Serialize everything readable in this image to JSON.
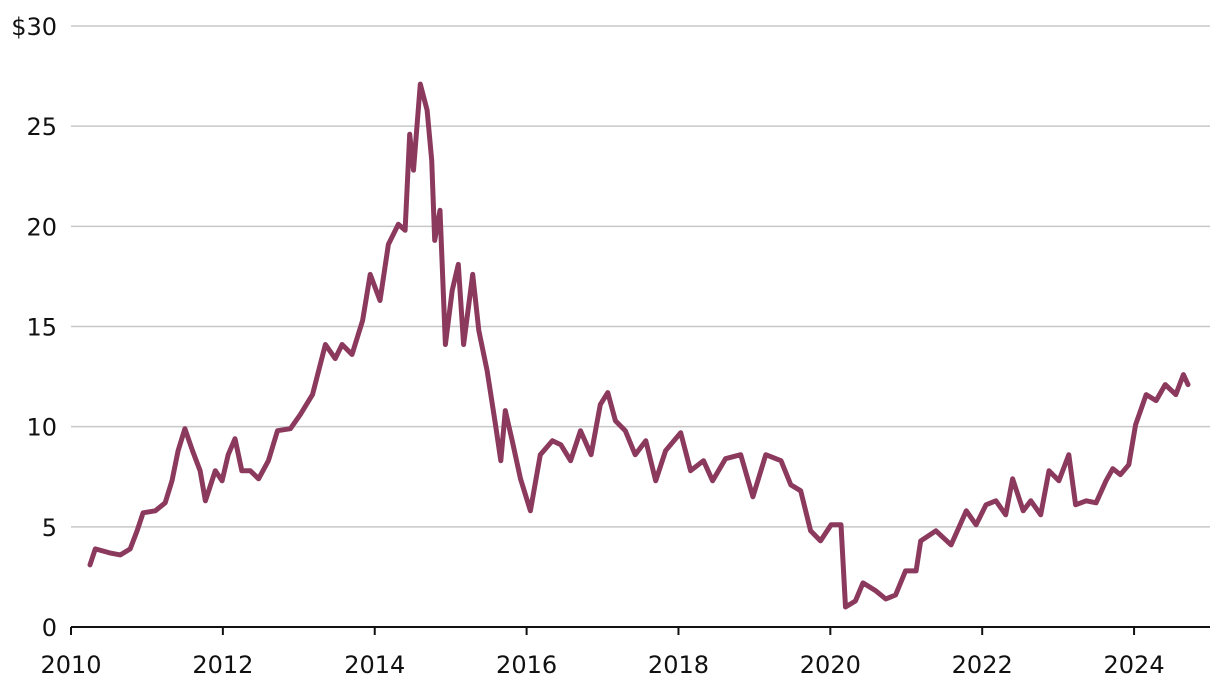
{
  "chart_data": {
    "type": "line",
    "color": "#8b3a5e",
    "grid": true,
    "xlim": [
      2010,
      2025
    ],
    "xticks": [
      2010,
      2012,
      2014,
      2016,
      2018,
      2020,
      2022,
      2024
    ],
    "ylim": [
      0,
      30
    ],
    "yticks": [
      0,
      5,
      10,
      15,
      20,
      25,
      {
        "value": 30,
        "label": "$30"
      }
    ],
    "x": [
      2010.25,
      2010.32,
      2010.51,
      2010.65,
      2010.78,
      2010.87,
      2010.95,
      2011.11,
      2011.24,
      2011.33,
      2011.41,
      2011.5,
      2011.6,
      2011.7,
      2011.77,
      2011.9,
      2011.99,
      2012.07,
      2012.16,
      2012.25,
      2012.36,
      2012.47,
      2012.6,
      2012.72,
      2012.89,
      2013.02,
      2013.18,
      2013.35,
      2013.48,
      2013.57,
      2013.7,
      2013.84,
      2013.94,
      2014.07,
      2014.18,
      2014.31,
      2014.4,
      2014.46,
      2014.51,
      2014.6,
      2014.69,
      2014.75,
      2014.79,
      2014.86,
      2014.93,
      2015.02,
      2015.1,
      2015.17,
      2015.29,
      2015.37,
      2015.48,
      2015.59,
      2015.66,
      2015.72,
      2015.81,
      2015.92,
      2016.05,
      2016.18,
      2016.34,
      2016.45,
      2016.58,
      2016.71,
      2016.85,
      2016.97,
      2017.07,
      2017.17,
      2017.3,
      2017.43,
      2017.57,
      2017.7,
      2017.83,
      2018.03,
      2018.16,
      2018.33,
      2018.45,
      2018.62,
      2018.82,
      2018.98,
      2019.15,
      2019.35,
      2019.48,
      2019.61,
      2019.74,
      2019.87,
      2020.01,
      2020.14,
      2020.2,
      2020.33,
      2020.43,
      2020.6,
      2020.73,
      2020.86,
      2020.99,
      2021.13,
      2021.19,
      2021.39,
      2021.59,
      2021.79,
      2021.92,
      2022.05,
      2022.18,
      2022.31,
      2022.4,
      2022.54,
      2022.64,
      2022.77,
      2022.88,
      2023.01,
      2023.14,
      2023.23,
      2023.37,
      2023.5,
      2023.63,
      2023.72,
      2023.82,
      2023.93,
      2024.02,
      2024.16,
      2024.29,
      2024.41,
      2024.55,
      2024.65,
      2024.71
    ],
    "values": [
      3.1,
      3.9,
      3.7,
      3.6,
      3.9,
      4.8,
      5.7,
      5.8,
      6.2,
      7.3,
      8.8,
      9.9,
      8.8,
      7.8,
      6.3,
      7.8,
      7.3,
      8.6,
      9.4,
      7.8,
      7.8,
      7.4,
      8.3,
      9.8,
      9.9,
      10.6,
      11.6,
      14.1,
      13.4,
      14.1,
      13.6,
      15.3,
      17.6,
      16.3,
      19.1,
      20.1,
      19.8,
      24.6,
      22.8,
      27.1,
      25.8,
      23.3,
      19.3,
      20.8,
      14.1,
      16.8,
      18.1,
      14.1,
      17.6,
      14.8,
      12.8,
      10.1,
      8.3,
      10.8,
      9.3,
      7.4,
      5.8,
      8.6,
      9.3,
      9.1,
      8.3,
      9.8,
      8.6,
      11.1,
      11.7,
      10.3,
      9.8,
      8.6,
      9.3,
      7.3,
      8.8,
      9.7,
      7.8,
      8.3,
      7.3,
      8.4,
      8.6,
      6.5,
      8.6,
      8.3,
      7.1,
      6.8,
      4.8,
      4.3,
      5.1,
      5.1,
      1.0,
      1.3,
      2.2,
      1.8,
      1.4,
      1.6,
      2.8,
      2.8,
      4.3,
      4.8,
      4.1,
      5.8,
      5.1,
      6.1,
      6.3,
      5.6,
      7.4,
      5.8,
      6.3,
      5.6,
      7.8,
      7.3,
      8.6,
      6.1,
      6.3,
      6.2,
      7.3,
      7.9,
      7.6,
      8.1,
      10.1,
      11.6,
      11.3,
      12.1,
      11.6,
      12.6,
      12.1
    ]
  }
}
